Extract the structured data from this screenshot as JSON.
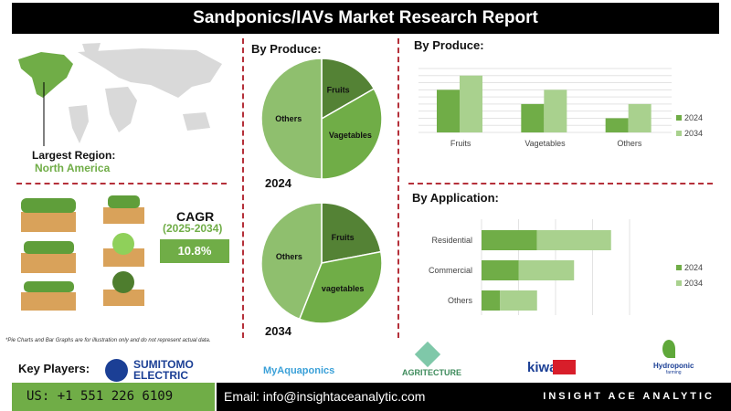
{
  "title": "Sandponics/IAVs Market Research Report",
  "region": {
    "label": "Largest Region:",
    "value": "North America"
  },
  "cagr": {
    "label": "CAGR",
    "period": "(2025-2034)",
    "value": "10.8%"
  },
  "disclaimer": "*Pie Charts and Bar Graphs are for illustration only and do not represent actual data.",
  "key_players": {
    "label": "Key Players:",
    "logos": [
      "SUMITOMO",
      "ELECTRIC",
      "MyAquaponics",
      "AGRITECTURE",
      "kiwa",
      "Hydroponic",
      "farming"
    ]
  },
  "footer": {
    "phone": "US: +1 551 226 6109",
    "email": "Email: info@insightaceanalytic.com",
    "brand": "INSIGHT ACE ANALYTIC"
  },
  "colors": {
    "dark": "#548235",
    "mid": "#70ad47",
    "light": "#a9d18e",
    "pie_others": "#8fbf6e",
    "red": "#b5303a"
  },
  "chart_data": [
    {
      "type": "pie",
      "title": "By Produce:",
      "caption": "2024",
      "labels": [
        "Fruits",
        "Vagetables",
        "Others"
      ],
      "values": [
        16.7,
        33.3,
        50
      ]
    },
    {
      "type": "pie",
      "title": "",
      "caption": "2034",
      "labels": [
        "Fruits",
        "vagetables",
        "Others"
      ],
      "values": [
        22,
        34,
        44
      ]
    },
    {
      "type": "bar",
      "title": "By Produce:",
      "categories": [
        "Fruits",
        "Vagetables",
        "Others"
      ],
      "series": [
        {
          "name": "2024",
          "values": [
            6,
            4,
            2
          ]
        },
        {
          "name": "2034",
          "values": [
            8,
            6,
            4
          ]
        }
      ],
      "ylim": [
        0,
        9
      ],
      "grid": true,
      "legend": "right"
    },
    {
      "type": "bar",
      "orientation": "horizontal",
      "stacked": true,
      "title": "By Application:",
      "categories": [
        "Residential",
        "Commercial",
        "Others"
      ],
      "series": [
        {
          "name": "2024",
          "values": [
            1.5,
            1,
            0.5
          ]
        },
        {
          "name": "2034",
          "values": [
            2,
            1.5,
            1
          ]
        }
      ],
      "xlim": [
        0,
        4
      ],
      "grid": true,
      "legend": "right"
    }
  ]
}
